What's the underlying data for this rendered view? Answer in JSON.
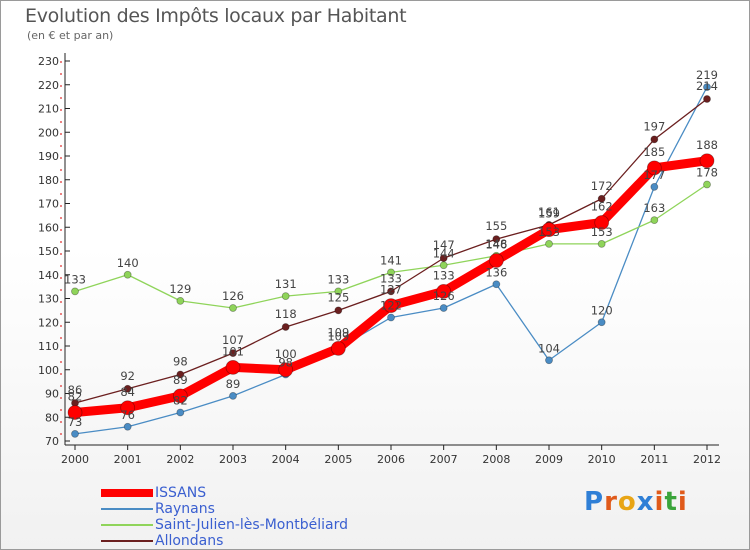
{
  "header": {
    "title": "Evolution des Impôts locaux par Habitant",
    "subtitle": "(en € et par an)"
  },
  "logo": {
    "text": "Proxiti",
    "letters": [
      "P",
      "r",
      "o",
      "x",
      "i",
      "t",
      "i"
    ],
    "colors": [
      "#2f7fd6",
      "#e05a1a",
      "#e8a516",
      "#2f7fd6",
      "#e05a1a",
      "#3aa43a",
      "#e05a1a"
    ]
  },
  "chart_data": {
    "type": "line",
    "title": "Evolution des Impôts locaux par Habitant",
    "subtitle": "(en € et par an)",
    "xlabel": "",
    "ylabel": "",
    "ylim": [
      70,
      230
    ],
    "ytick_step": 10,
    "grid": false,
    "legend_position": "bottom-left",
    "x": [
      "2000",
      "2001",
      "2002",
      "2003",
      "2004",
      "2005",
      "2006",
      "2007",
      "2008",
      "2009",
      "2010",
      "2011",
      "2012"
    ],
    "series": [
      {
        "name": "Raynans",
        "color": "#4a8cc4",
        "values": [
          73,
          76,
          82,
          89,
          98,
          109,
          122,
          126,
          136,
          104,
          120,
          177,
          219
        ],
        "labels": [
          "73",
          "76",
          "82",
          "89",
          "98",
          "109",
          "122",
          "126",
          "136",
          "104",
          "120",
          "177",
          "219"
        ]
      },
      {
        "name": "Saint-Julien-lès-Montbéliard",
        "color": "#8fd45a",
        "values": [
          133,
          140,
          129,
          126,
          131,
          133,
          141,
          144,
          148,
          153,
          153,
          163,
          178
        ],
        "labels": [
          "133",
          "140",
          "129",
          "126",
          "131",
          "133",
          "141",
          "144",
          "148",
          "153",
          "153",
          "163",
          "178"
        ]
      },
      {
        "name": "Allondans",
        "color": "#6b1f1f",
        "values": [
          86,
          92,
          98,
          107,
          118,
          125,
          133,
          147,
          155,
          161,
          172,
          197,
          214
        ],
        "labels": [
          "86",
          "92",
          "98",
          "107",
          "118",
          "125",
          "133",
          "147",
          "155",
          "161",
          "172",
          "197",
          "214"
        ]
      },
      {
        "name": "ISSANS",
        "color": "#ff0000",
        "values": [
          82,
          84,
          89,
          101,
          100,
          109,
          127,
          133,
          146,
          159,
          162,
          185,
          188
        ],
        "labels": [
          "82",
          "84",
          "89",
          "101",
          "100",
          "109",
          "127",
          "133",
          "146",
          "159",
          "162",
          "185",
          "188"
        ]
      }
    ],
    "legend_order": [
      "ISSANS",
      "Raynans",
      "Saint-Julien-lès-Montbéliard",
      "Allondans"
    ]
  }
}
